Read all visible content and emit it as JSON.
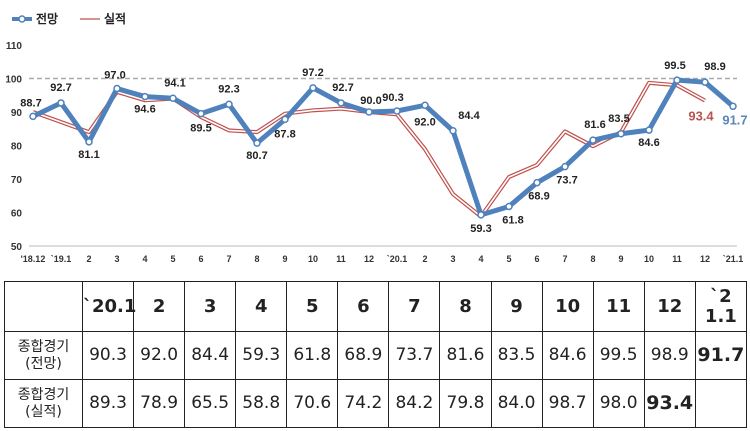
{
  "chart_data": [
    {
      "type": "line",
      "legend": [
        "전망",
        "실적"
      ],
      "legend_position": "top-left",
      "colors": {
        "forecast": "#4f81bd",
        "actual": "#c0504d",
        "reference": "#aaaaaa"
      },
      "reference_line": 100,
      "ylim": [
        50,
        110
      ],
      "yticks": [
        "50",
        "60",
        "70",
        "80",
        "90",
        "100",
        "110"
      ],
      "x": [
        "'18.12",
        "`19.1",
        "2",
        "3",
        "4",
        "5",
        "6",
        "7",
        "8",
        "9",
        "10",
        "11",
        "12",
        "`20.1",
        "2",
        "3",
        "4",
        "5",
        "6",
        "7",
        "8",
        "9",
        "10",
        "11",
        "12",
        "`21.1"
      ],
      "series": [
        {
          "name": "전망",
          "values": [
            88.7,
            92.7,
            81.1,
            97.0,
            94.6,
            94.1,
            89.5,
            92.3,
            80.7,
            87.8,
            97.2,
            92.7,
            90.0,
            90.3,
            92.0,
            84.4,
            59.3,
            61.8,
            68.9,
            73.7,
            81.6,
            83.5,
            84.6,
            99.5,
            98.9,
            91.7
          ]
        },
        {
          "name": "실적",
          "values": [
            90.0,
            87.0,
            84.0,
            96.0,
            93.5,
            94.0,
            88.5,
            84.5,
            84.0,
            89.5,
            90.5,
            91.0,
            90.0,
            89.3,
            78.9,
            65.5,
            58.8,
            70.6,
            74.2,
            84.2,
            79.8,
            84.0,
            98.7,
            98.0,
            93.4,
            null
          ]
        }
      ],
      "point_labels": [
        {
          "i": 0,
          "text": "88.7"
        },
        {
          "i": 1,
          "text": "92.7"
        },
        {
          "i": 2,
          "text": "81.1"
        },
        {
          "i": 3,
          "text": "97.0"
        },
        {
          "i": 4,
          "text": "94.6"
        },
        {
          "i": 5,
          "text": "94.1"
        },
        {
          "i": 6,
          "text": "89.5"
        },
        {
          "i": 7,
          "text": "92.3"
        },
        {
          "i": 8,
          "text": "80.7"
        },
        {
          "i": 9,
          "text": "87.8"
        },
        {
          "i": 10,
          "text": "97.2"
        },
        {
          "i": 11,
          "text": "92.7"
        },
        {
          "i": 12,
          "text": "90.0"
        },
        {
          "i": 13,
          "text": "90.3"
        },
        {
          "i": 14,
          "text": "92.0"
        },
        {
          "i": 15,
          "text": "84.4"
        },
        {
          "i": 16,
          "text": "59.3"
        },
        {
          "i": 17,
          "text": "61.8"
        },
        {
          "i": 18,
          "text": "68.9"
        },
        {
          "i": 19,
          "text": "73.7"
        },
        {
          "i": 20,
          "text": "81.6"
        },
        {
          "i": 21,
          "text": "83.5"
        },
        {
          "i": 22,
          "text": "84.6"
        },
        {
          "i": 23,
          "text": "99.5"
        },
        {
          "i": 24,
          "text": "98.9"
        },
        {
          "i": 25,
          "text": "91.7"
        }
      ],
      "actual_end_label": "93.4"
    },
    {
      "type": "table",
      "header": [
        "`20.1",
        "2",
        "3",
        "4",
        "5",
        "6",
        "7",
        "8",
        "9",
        "10",
        "11",
        "12",
        "`21.1"
      ],
      "rows": [
        {
          "label_line1": "종합경기",
          "label_line2": "(전망)",
          "values": [
            "90.3",
            "92.0",
            "84.4",
            "59.3",
            "61.8",
            "68.9",
            "73.7",
            "81.6",
            "83.5",
            "84.6",
            "99.5",
            "98.9",
            "91.7"
          ]
        },
        {
          "label_line1": "종합경기",
          "label_line2": "(실적)",
          "values": [
            "89.3",
            "78.9",
            "65.5",
            "58.8",
            "70.6",
            "74.2",
            "84.2",
            "79.8",
            "84.0",
            "98.7",
            "98.0",
            "93.4",
            ""
          ]
        }
      ]
    }
  ]
}
